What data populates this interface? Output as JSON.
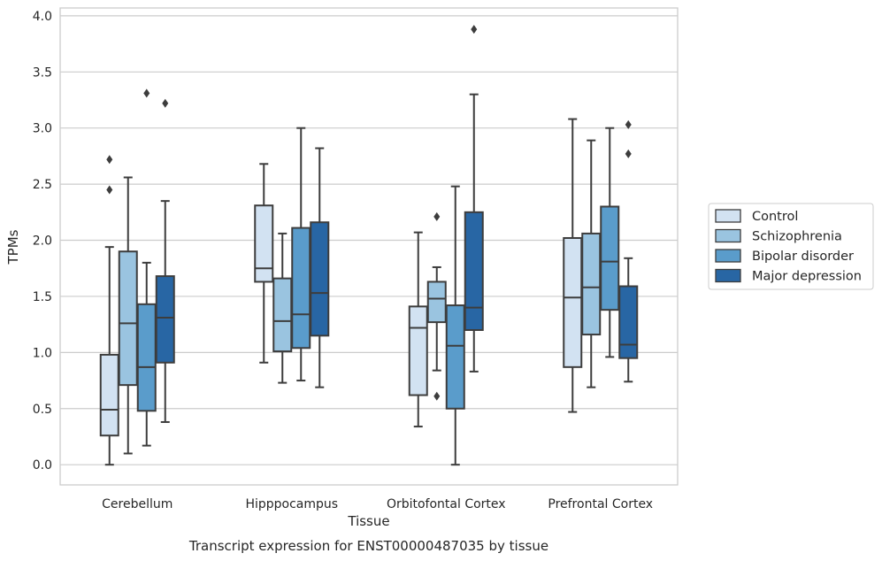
{
  "chart_data": {
    "type": "boxplot",
    "title": "Transcript expression for ENST00000487035 by tissue",
    "xlabel": "Tissue",
    "ylabel": "TPMs",
    "ylim": [
      -0.18,
      4.07
    ],
    "yticks": [
      0.0,
      0.5,
      1.0,
      1.5,
      2.0,
      2.5,
      3.0,
      3.5,
      4.0
    ],
    "ytick_labels": [
      "0.0",
      "0.5",
      "1.0",
      "1.5",
      "2.0",
      "2.5",
      "3.0",
      "3.5",
      "4.0"
    ],
    "grid": true,
    "legend_position": "right",
    "categories": [
      "Cerebellum",
      "Hipppocampus",
      "Orbitofontal Cortex",
      "Prefrontal Cortex"
    ],
    "series": [
      {
        "name": "Control",
        "color": "#d2e2f2",
        "boxes": [
          {
            "whislo": 0.0,
            "q1": 0.26,
            "med": 0.49,
            "q3": 0.98,
            "whishi": 1.94,
            "fliers": [
              2.45,
              2.72
            ]
          },
          {
            "whislo": 0.91,
            "q1": 1.63,
            "med": 1.75,
            "q3": 2.31,
            "whishi": 2.68,
            "fliers": []
          },
          {
            "whislo": 0.34,
            "q1": 0.62,
            "med": 1.22,
            "q3": 1.41,
            "whishi": 2.07,
            "fliers": []
          },
          {
            "whislo": 0.47,
            "q1": 0.87,
            "med": 1.49,
            "q3": 2.02,
            "whishi": 3.08,
            "fliers": []
          }
        ]
      },
      {
        "name": "Schizophrenia",
        "color": "#9ac4e0",
        "boxes": [
          {
            "whislo": 0.1,
            "q1": 0.71,
            "med": 1.26,
            "q3": 1.9,
            "whishi": 2.56,
            "fliers": []
          },
          {
            "whislo": 0.73,
            "q1": 1.01,
            "med": 1.28,
            "q3": 1.66,
            "whishi": 2.06,
            "fliers": []
          },
          {
            "whislo": 0.84,
            "q1": 1.27,
            "med": 1.48,
            "q3": 1.63,
            "whishi": 1.76,
            "fliers": [
              2.21,
              0.61
            ]
          },
          {
            "whislo": 0.69,
            "q1": 1.16,
            "med": 1.58,
            "q3": 2.06,
            "whishi": 2.89,
            "fliers": []
          }
        ]
      },
      {
        "name": "Bipolar disorder",
        "color": "#5a9ccb",
        "boxes": [
          {
            "whislo": 0.17,
            "q1": 0.48,
            "med": 0.87,
            "q3": 1.43,
            "whishi": 1.8,
            "fliers": [
              3.31
            ]
          },
          {
            "whislo": 0.75,
            "q1": 1.04,
            "med": 1.34,
            "q3": 2.11,
            "whishi": 3.0,
            "fliers": []
          },
          {
            "whislo": 0.0,
            "q1": 0.5,
            "med": 1.06,
            "q3": 1.42,
            "whishi": 2.48,
            "fliers": []
          },
          {
            "whislo": 0.96,
            "q1": 1.38,
            "med": 1.81,
            "q3": 2.3,
            "whishi": 3.0,
            "fliers": []
          }
        ]
      },
      {
        "name": "Major depression",
        "color": "#2866a4",
        "boxes": [
          {
            "whislo": 0.38,
            "q1": 0.91,
            "med": 1.31,
            "q3": 1.68,
            "whishi": 2.35,
            "fliers": [
              3.22
            ]
          },
          {
            "whislo": 0.69,
            "q1": 1.15,
            "med": 1.53,
            "q3": 2.16,
            "whishi": 2.82,
            "fliers": []
          },
          {
            "whislo": 0.83,
            "q1": 1.2,
            "med": 1.4,
            "q3": 2.25,
            "whishi": 3.3,
            "fliers": [
              3.88
            ]
          },
          {
            "whislo": 0.74,
            "q1": 0.95,
            "med": 1.07,
            "q3": 1.59,
            "whishi": 1.84,
            "fliers": [
              3.03,
              2.77
            ]
          }
        ]
      }
    ]
  }
}
